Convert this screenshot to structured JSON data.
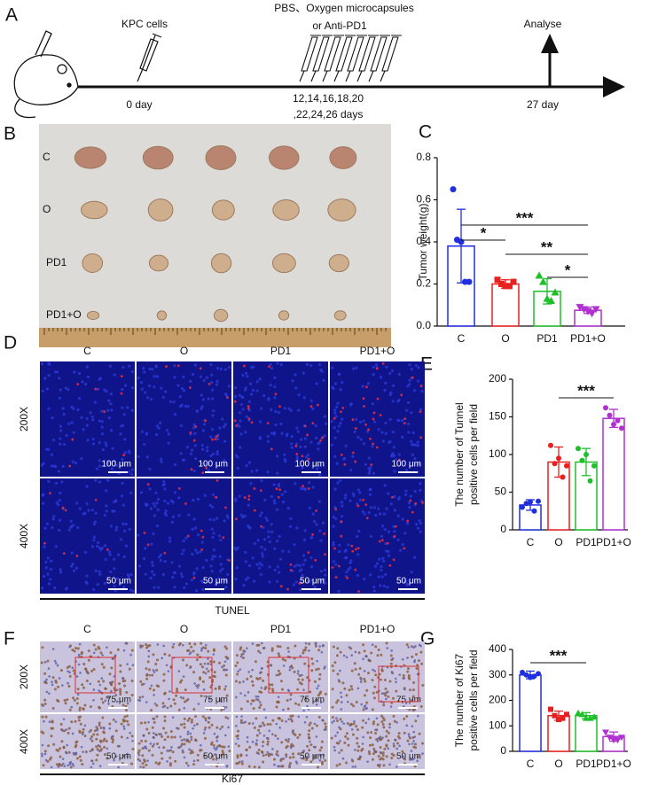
{
  "panel_labels": [
    "A",
    "B",
    "C",
    "D",
    "E",
    "F",
    "G"
  ],
  "timeline": {
    "injection": "KPC cells",
    "start_day": "0 day",
    "treatment": [
      "PBS、Oxygen microcapsules",
      "or Anti-PD1"
    ],
    "treatment_days": [
      "12,14,16,18,20",
      ",22,24,26 days"
    ],
    "endpoint": "Analyse",
    "end_day": "27 day"
  },
  "tumor_photo": {
    "row_labels": [
      "C",
      "O",
      "PD1",
      "PD1+O"
    ]
  },
  "tunel": {
    "column_labels": [
      "C",
      "O",
      "PD1",
      "PD1+O"
    ],
    "row_labels": [
      "200X",
      "400X"
    ],
    "scale_bars": [
      "100 μm",
      "50 μm"
    ],
    "caption": "TUNEL"
  },
  "ki67": {
    "column_labels": [
      "C",
      "O",
      "PD1",
      "PD1+O"
    ],
    "row_labels": [
      "200X",
      "400X"
    ],
    "scale_bars": [
      "75 μm",
      "50 μm"
    ],
    "caption": "Ki67"
  },
  "chart_data": [
    {
      "type": "bar",
      "y_label": [
        "Tumor weight(g)"
      ],
      "categories": [
        "C",
        "O",
        "PD1",
        "PD1+O"
      ],
      "colors": [
        "#1f2fe0",
        "#e82020",
        "#1fbf2a",
        "#b030d0"
      ],
      "values": [
        0.38,
        0.2,
        0.165,
        0.075
      ],
      "errors": [
        0.175,
        0.02,
        0.06,
        0.015
      ],
      "points": [
        [
          0.65,
          0.41,
          0.4,
          0.21,
          0.21
        ],
        [
          0.22,
          0.2,
          0.19,
          0.19,
          0.21
        ],
        [
          0.24,
          0.21,
          0.13,
          0.12,
          0.16
        ],
        [
          0.09,
          0.08,
          0.07,
          0.06,
          0.08
        ]
      ],
      "ylim": [
        0,
        0.8
      ],
      "yticks": [
        {
          "value": 0,
          "label": "0.0"
        },
        0.2,
        0.4,
        0.6,
        0.8
      ],
      "annotations": [
        {
          "label": "***",
          "from": "C",
          "to": "PD1+O"
        },
        {
          "label": "*",
          "from": "C",
          "to": "O"
        },
        {
          "label": "**",
          "from": "O",
          "to": "PD1+O"
        },
        {
          "label": "*",
          "from": "PD1",
          "to": "PD1+O"
        }
      ]
    },
    {
      "type": "bar",
      "y_label": [
        "The number of Tunnel",
        "positive cells per field"
      ],
      "categories": [
        "C",
        "O",
        "PD1",
        "PD1+O"
      ],
      "colors": [
        "#1f2fe0",
        "#e82020",
        "#1fbf2a",
        "#b030d0"
      ],
      "values": [
        33,
        90,
        90,
        148
      ],
      "errors": [
        7,
        20,
        18,
        12
      ],
      "points": [
        [
          30,
          35,
          37,
          25,
          38
        ],
        [
          112,
          88,
          95,
          70,
          85
        ],
        [
          108,
          92,
          100,
          65,
          85
        ],
        [
          162,
          152,
          140,
          145,
          135
        ]
      ],
      "ylim": [
        0,
        200
      ],
      "yticks": [
        0,
        50,
        100,
        150,
        200
      ],
      "annotations": [
        {
          "label": "***",
          "from": "O",
          "to": "PD1+O"
        }
      ]
    },
    {
      "type": "bar",
      "y_label": [
        "The number of Ki67",
        "positive cells per field"
      ],
      "categories": [
        "C",
        "O",
        "PD1",
        "PD1+O"
      ],
      "colors": [
        "#1f2fe0",
        "#e82020",
        "#1fbf2a",
        "#b030d0"
      ],
      "values": [
        300,
        140,
        140,
        58
      ],
      "errors": [
        15,
        18,
        12,
        18
      ],
      "points": [
        [
          310,
          300,
          290,
          295,
          305
        ],
        [
          165,
          140,
          125,
          130,
          145
        ],
        [
          150,
          145,
          130,
          130,
          135
        ],
        [
          75,
          55,
          45,
          45,
          55
        ]
      ],
      "ylim": [
        0,
        400
      ],
      "yticks": [
        0,
        100,
        200,
        300,
        400
      ],
      "annotations": [
        {
          "label": "***",
          "from": "C",
          "to": "PD1"
        }
      ]
    }
  ]
}
